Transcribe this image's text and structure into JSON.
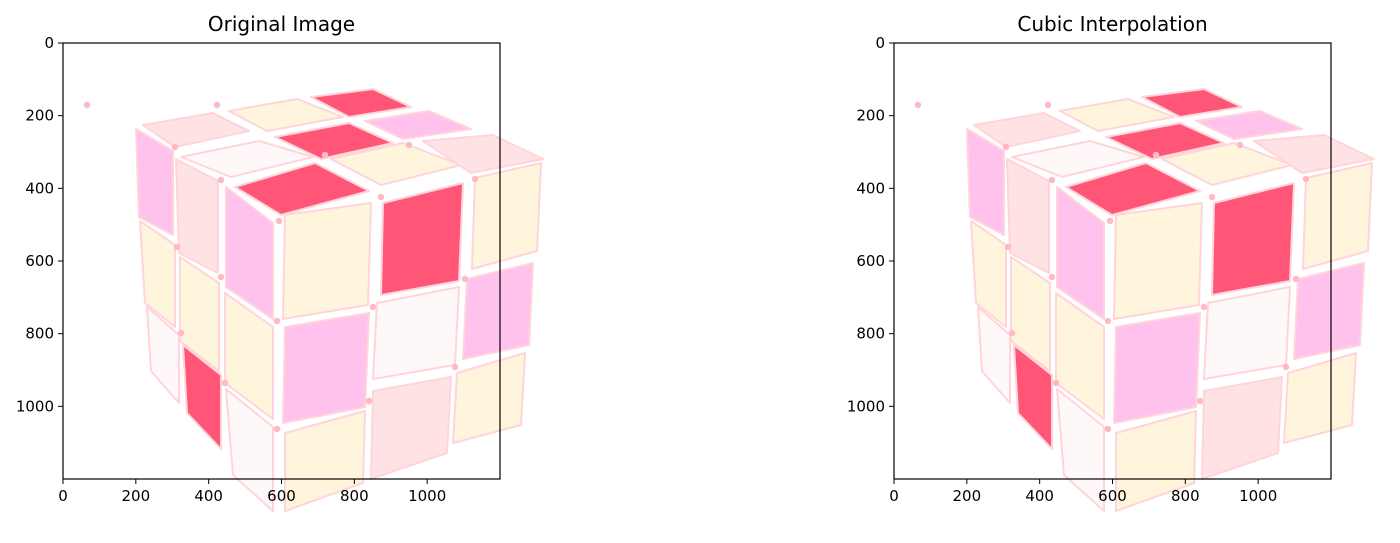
{
  "figure": {
    "colors": {
      "red": "#ff5677",
      "pink": "#ffc2ec",
      "cream": "#fff5dc",
      "blush": "#ffe2e4",
      "white": "#fff8f9",
      "peg": "#ffb8c4",
      "edge": "#ffd4da"
    }
  },
  "chart_data": [
    {
      "type": "image",
      "title": "Original Image",
      "xlim": [
        0,
        1200
      ],
      "ylim": [
        1200,
        0
      ],
      "x_ticks": [
        0,
        200,
        400,
        600,
        800,
        1000
      ],
      "y_ticks": [
        0,
        200,
        400,
        600,
        800,
        1000
      ],
      "image_content": "rubiks-cube"
    },
    {
      "type": "image",
      "title": "Cubic Interpolation",
      "xlim": [
        0,
        1200
      ],
      "ylim": [
        1200,
        0
      ],
      "x_ticks": [
        0,
        200,
        400,
        600,
        800,
        1000
      ],
      "y_ticks": [
        0,
        200,
        400,
        600,
        800,
        1000
      ],
      "image_content": "rubiks-cube"
    }
  ]
}
